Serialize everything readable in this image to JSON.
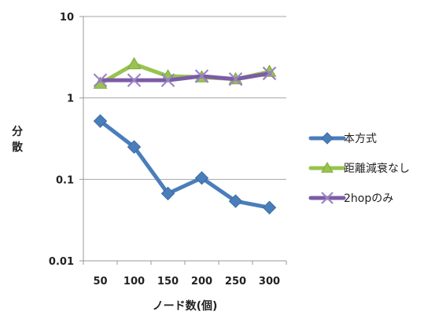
{
  "chart_data": {
    "type": "line",
    "yscale": "log",
    "ylim": [
      0.01,
      10
    ],
    "ytick_labels": [
      "10",
      "1",
      "0.1",
      "0.01"
    ],
    "categories": [
      "50",
      "100",
      "150",
      "200",
      "250",
      "300"
    ],
    "xlabel": "ノード数(個)",
    "ylabel": "分散",
    "legend_position": "right",
    "grid": "horizontal",
    "series": [
      {
        "name": "本方式",
        "color": "#4a7ebb",
        "marker": "diamond",
        "values": [
          0.52,
          0.25,
          0.067,
          0.104,
          0.054,
          0.045
        ]
      },
      {
        "name": "距離減衰なし",
        "color": "#98c34f",
        "marker": "triangle",
        "values": [
          1.5,
          2.6,
          1.85,
          1.8,
          1.7,
          2.1
        ]
      },
      {
        "name": "2hopのみ",
        "color": "#7d5ba6",
        "marker": "x",
        "values": [
          1.65,
          1.65,
          1.65,
          1.85,
          1.7,
          2.0
        ]
      }
    ]
  }
}
